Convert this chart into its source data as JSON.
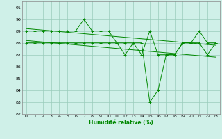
{
  "x": [
    0,
    1,
    2,
    3,
    4,
    5,
    6,
    7,
    8,
    9,
    10,
    11,
    12,
    13,
    14,
    15,
    16,
    17,
    18,
    19,
    20,
    21,
    22,
    23
  ],
  "line2_y": [
    89,
    89,
    89,
    89,
    89,
    89,
    89,
    90,
    89,
    89,
    89,
    88,
    87,
    88,
    87,
    89,
    87,
    87,
    87,
    88,
    88,
    89,
    88,
    88
  ],
  "line1_y": [
    88,
    88,
    88,
    88,
    88,
    88,
    88,
    88,
    88,
    88,
    88,
    88,
    88,
    88,
    88,
    83,
    84,
    87,
    87,
    88,
    88,
    88,
    87,
    88
  ],
  "trend1_x": [
    0,
    23
  ],
  "trend1_y": [
    89.2,
    87.8
  ],
  "trend2_x": [
    0,
    23
  ],
  "trend2_y": [
    88.2,
    86.8
  ],
  "ylim": [
    82,
    91.5
  ],
  "xlim": [
    -0.5,
    23.5
  ],
  "yticks": [
    82,
    83,
    84,
    85,
    86,
    87,
    88,
    89,
    90,
    91
  ],
  "xticks": [
    0,
    1,
    2,
    3,
    4,
    5,
    6,
    7,
    8,
    9,
    10,
    11,
    12,
    13,
    14,
    15,
    16,
    17,
    18,
    19,
    20,
    21,
    22,
    23
  ],
  "xlabel": "Humidité relative (%)",
  "bg_color": "#cff0e8",
  "grid_color": "#99ccbb",
  "line_color": "#008800",
  "tick_color": "#000000",
  "markersize": 3,
  "linewidth": 0.7,
  "ylabel_fontsize": 5.0,
  "xlabel_fontsize": 5.5,
  "tick_fontsize": 4.5
}
